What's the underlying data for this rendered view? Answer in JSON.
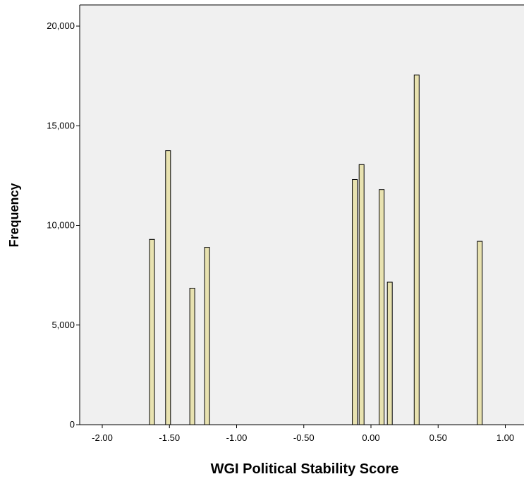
{
  "chart_data": {
    "type": "bar",
    "title": "",
    "xlabel": "WGI Political Stability Score",
    "ylabel": "Frequency",
    "xlim": [
      -2.2,
      1.1
    ],
    "ylim": [
      0,
      21000
    ],
    "xticks": [
      -2.0,
      -1.5,
      -1.0,
      -0.5,
      0.0,
      0.5,
      1.0
    ],
    "xtick_labels": [
      "-2.00",
      "-1.50",
      "-1.00",
      "-0.50",
      "0.00",
      "0.50",
      "1.00"
    ],
    "yticks": [
      0,
      5000,
      10000,
      15000,
      20000
    ],
    "ytick_labels": [
      "0",
      "5,000",
      "10,000",
      "15,000",
      "20,000"
    ],
    "grid": false,
    "legend": "none",
    "bar_color": "#e8e2b0",
    "bar_edge_color": "#000000",
    "plot_background": "#f0f0f0",
    "x": [
      -1.63,
      -1.51,
      -1.33,
      -1.22,
      -0.12,
      -0.07,
      0.08,
      0.14,
      0.34,
      0.81
    ],
    "values": [
      9300,
      13750,
      6850,
      8900,
      12300,
      13050,
      11800,
      7150,
      17550,
      9200
    ]
  }
}
